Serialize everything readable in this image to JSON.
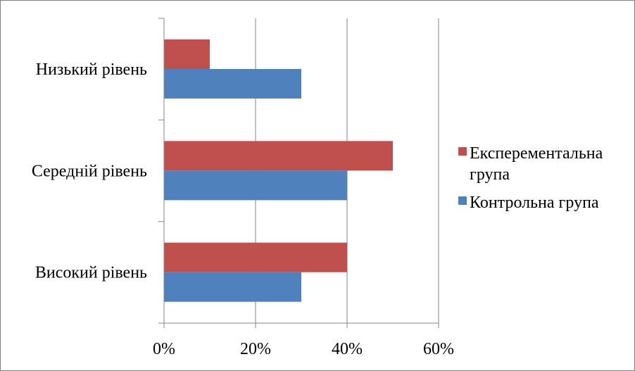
{
  "chart_data": {
    "type": "bar",
    "orientation": "horizontal",
    "categories": [
      "Низький рівень",
      "Середній рівень",
      "Високий рівень"
    ],
    "series": [
      {
        "name_lines": [
          "Експерементальна",
          "група"
        ],
        "color": "#C0504D",
        "values": [
          10,
          50,
          40
        ]
      },
      {
        "name_lines": [
          "Контрольна група"
        ],
        "color": "#4F81BD",
        "values": [
          30,
          40,
          30
        ]
      }
    ],
    "x_ticks": [
      "0%",
      "20%",
      "40%",
      "60%"
    ],
    "x_tick_values": [
      0,
      20,
      40,
      60
    ],
    "xlim": [
      0,
      60
    ],
    "grid": "vertical",
    "legend_position": "right"
  }
}
